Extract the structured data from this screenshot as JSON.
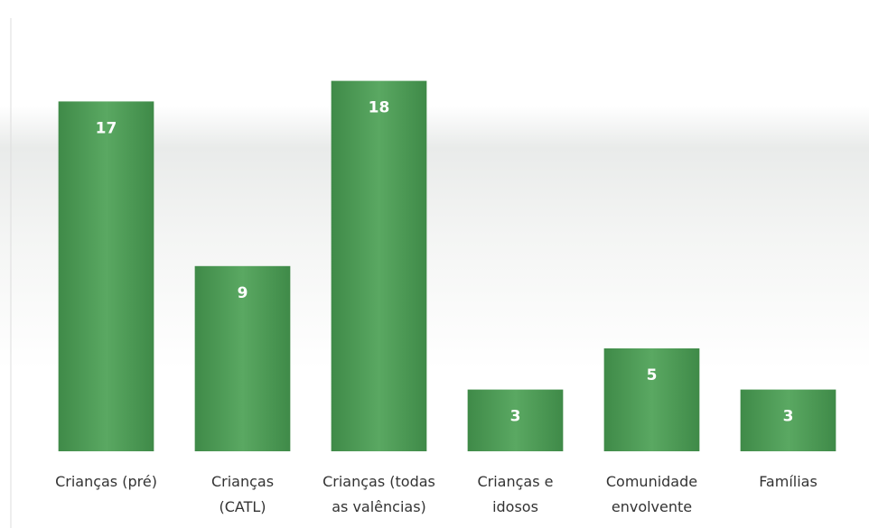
{
  "chart_data": {
    "type": "bar",
    "categories": [
      "Crianças (pré)",
      "Crianças\n(CATL)",
      "Crianças (todas\nas valências)",
      "Crianças e\nidosos",
      "Comunidade\nenvolvente",
      "Famílias"
    ],
    "values": [
      17,
      9,
      18,
      3,
      5,
      3
    ],
    "color": "#4e9a56",
    "ylim": [
      0,
      20
    ]
  }
}
